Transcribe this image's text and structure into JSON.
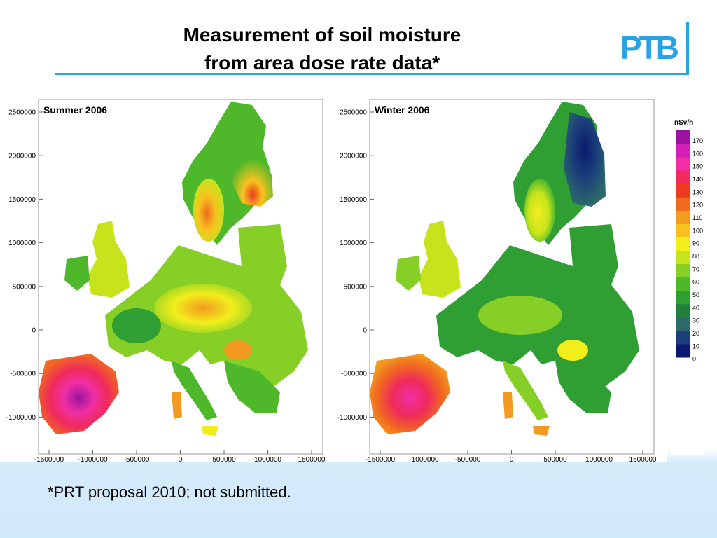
{
  "slide": {
    "title_line1": "Measurement of soil moisture",
    "title_line2": "from area dose rate data*",
    "logo_text": "PTB",
    "footnote": "*PRT proposal 2010; not submitted."
  },
  "colors": {
    "accent": "#27a3e3",
    "scale": [
      "#0a1a6e",
      "#1b3f7a",
      "#2c6a6a",
      "#23803c",
      "#2f9e33",
      "#4fb82a",
      "#86cf26",
      "#c7e31c",
      "#f2ee1c",
      "#f7c21f",
      "#f39a20",
      "#f06a1f",
      "#ec3a1e",
      "#ef2a5c",
      "#f02fa6",
      "#d21fb6",
      "#9a139e"
    ]
  },
  "maps": [
    {
      "panel_title": "Summer 2006",
      "y_ticks": [
        "2500000",
        "2000000",
        "1500000",
        "1000000",
        "500000",
        "0",
        "-500000",
        "-1000000"
      ],
      "x_ticks": [
        "-1500000",
        "-1000000",
        "-500000",
        "0",
        "500000",
        "1000000",
        "1500000"
      ]
    },
    {
      "panel_title": "Winter 2006",
      "y_ticks": [
        "2500000",
        "2000000",
        "1500000",
        "1000000",
        "500000",
        "0",
        "-500000",
        "-1000000"
      ],
      "x_ticks": [
        "-1500000",
        "-1000000",
        "-500000",
        "0",
        "500000",
        "1000000",
        "1500000"
      ]
    }
  ],
  "legend": {
    "unit": "nSv/h",
    "values": [
      "170",
      "160",
      "150",
      "140",
      "130",
      "120",
      "110",
      "100",
      "90",
      "80",
      "70",
      "60",
      "50",
      "40",
      "30",
      "20",
      "10",
      "0"
    ]
  }
}
